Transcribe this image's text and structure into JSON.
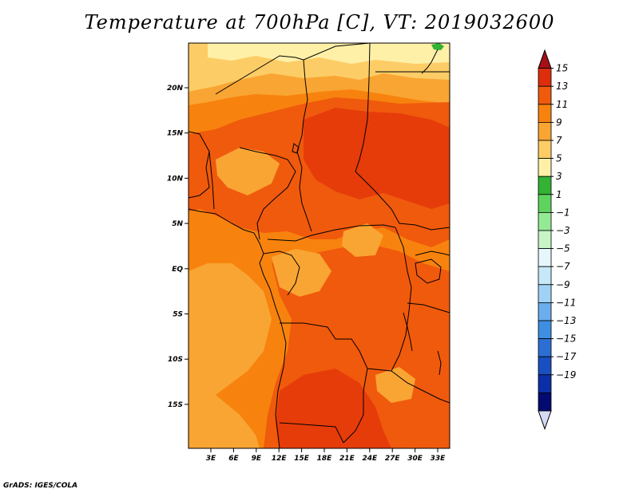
{
  "title": "Temperature at 700hPa [C], VT: 2019032600",
  "credit": "GrADS: IGES/COLA",
  "map": {
    "lat_ticks": [
      "20N",
      "15N",
      "10N",
      "5N",
      "EQ",
      "5S",
      "10S",
      "15S"
    ],
    "lon_ticks": [
      "3E",
      "6E",
      "9E",
      "12E",
      "15E",
      "18E",
      "21E",
      "24E",
      "27E",
      "30E",
      "33E"
    ]
  },
  "colorbar": {
    "labels": [
      "15",
      "13",
      "11",
      "9",
      "7",
      "5",
      "3",
      "1",
      "−1",
      "−3",
      "−5",
      "−7",
      "−9",
      "−11",
      "−13",
      "−15",
      "−17",
      "−19"
    ],
    "colors": [
      "#a50f15",
      "#de2d0b",
      "#f05a0c",
      "#f7830e",
      "#f9a533",
      "#fccd66",
      "#fff0a8",
      "#33b233",
      "#5fd35f",
      "#94ea94",
      "#c7f5c7",
      "#e6f7fc",
      "#c6e8f9",
      "#a0d2f5",
      "#6baded",
      "#3e8fe2",
      "#2c6fd4",
      "#1a4fc2",
      "#0c2fa8",
      "#050a70",
      "#d4daf4"
    ]
  },
  "palette": {
    "deep_orange": "#f05a0c",
    "orange": "#f7830e",
    "light_orange": "#f9a533",
    "gold": "#fccd66",
    "pale_yellow": "#fff0a8",
    "red_orange": "#e63c0a",
    "green": "#33b233",
    "border_color": "#000000"
  }
}
